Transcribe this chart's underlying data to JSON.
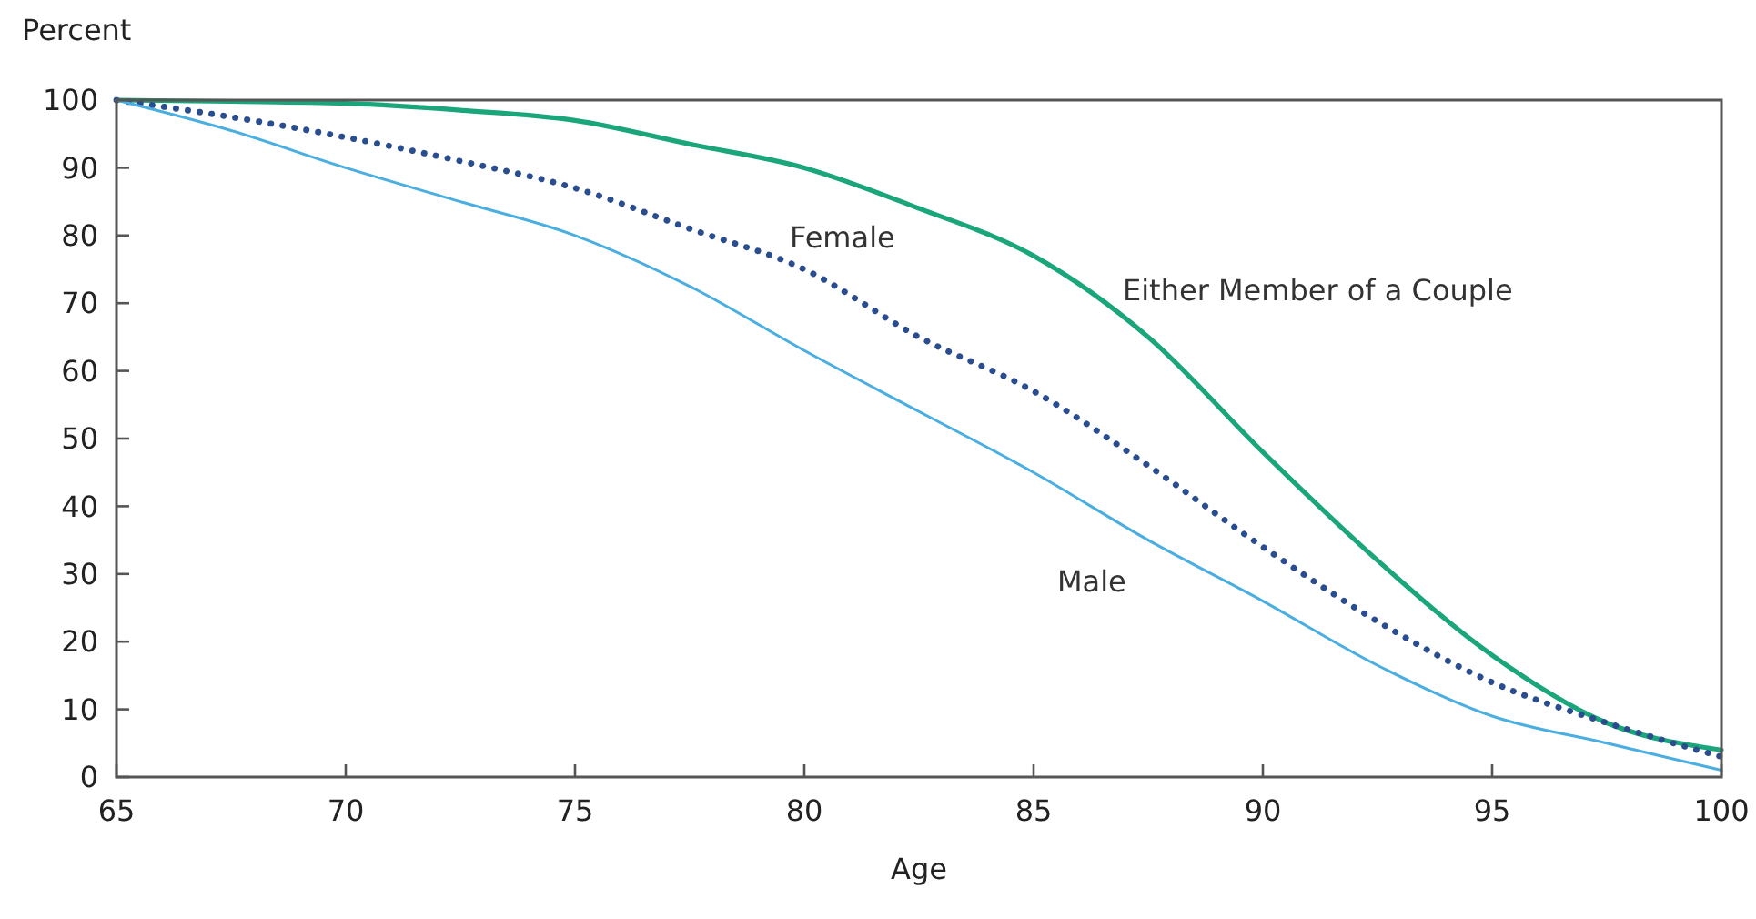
{
  "chart_data": {
    "type": "line",
    "xlabel": "Age",
    "ylabel": "Percent",
    "xlim": [
      65,
      100
    ],
    "xticks": [
      65,
      70,
      75,
      80,
      85,
      90,
      95,
      100
    ],
    "ylim": [
      0,
      100
    ],
    "yticks": [
      0,
      10,
      20,
      30,
      40,
      50,
      60,
      70,
      80,
      90,
      100
    ],
    "grid": false,
    "legend": false,
    "x": [
      65,
      67.5,
      70,
      72.5,
      75,
      77.5,
      80,
      82.5,
      85,
      87.5,
      90,
      92.5,
      95,
      97.5,
      100
    ],
    "series": [
      {
        "name": "Either Member of a Couple",
        "color": "#1aa57a",
        "line_style": "solid",
        "values": [
          100,
          99.8,
          99.5,
          98.5,
          97,
          93.5,
          90,
          84,
          77,
          65,
          48,
          32,
          18,
          8,
          4
        ]
      },
      {
        "name": "Female",
        "color": "#2a4d8f",
        "line_style": "dotted",
        "values": [
          100,
          97.5,
          94.5,
          91,
          87,
          81,
          75,
          65,
          57,
          46,
          34,
          23,
          14,
          8,
          3
        ]
      },
      {
        "name": "Male",
        "color": "#4aaee0",
        "line_style": "solid",
        "values": [
          100,
          95.5,
          90,
          85,
          80,
          72.5,
          63,
          54,
          45,
          35,
          26,
          16.5,
          9,
          5,
          1
        ]
      }
    ]
  }
}
